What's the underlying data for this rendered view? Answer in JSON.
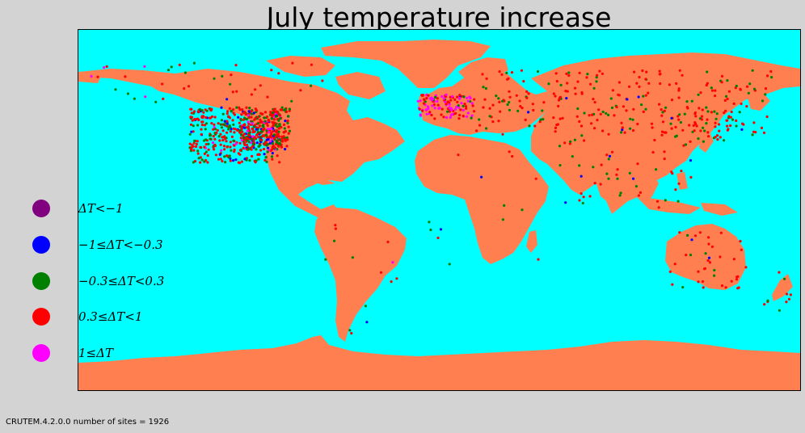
{
  "title": "July temperature increase",
  "footer": "CRUTEM.4.2.0.0 number of sites = 1926",
  "colors": {
    "ocean": "#00ffff",
    "land": "#ff7f50",
    "background": "#d3d3d3"
  },
  "legend": [
    {
      "label": "ΔT<−1",
      "color": "#800080"
    },
    {
      "label": "−1≤ΔT<−0.3",
      "color": "#0000ff"
    },
    {
      "label": "−0.3≤ΔT<0.3",
      "color": "#008000"
    },
    {
      "label": "0.3≤ΔT<1",
      "color": "#ff0000"
    },
    {
      "label": "1≤ΔT",
      "color": "#ff00ff"
    }
  ],
  "map": {
    "projection": "equirectangular",
    "lon_range": [
      -180,
      180
    ],
    "lat_range": [
      -90,
      90
    ]
  }
}
